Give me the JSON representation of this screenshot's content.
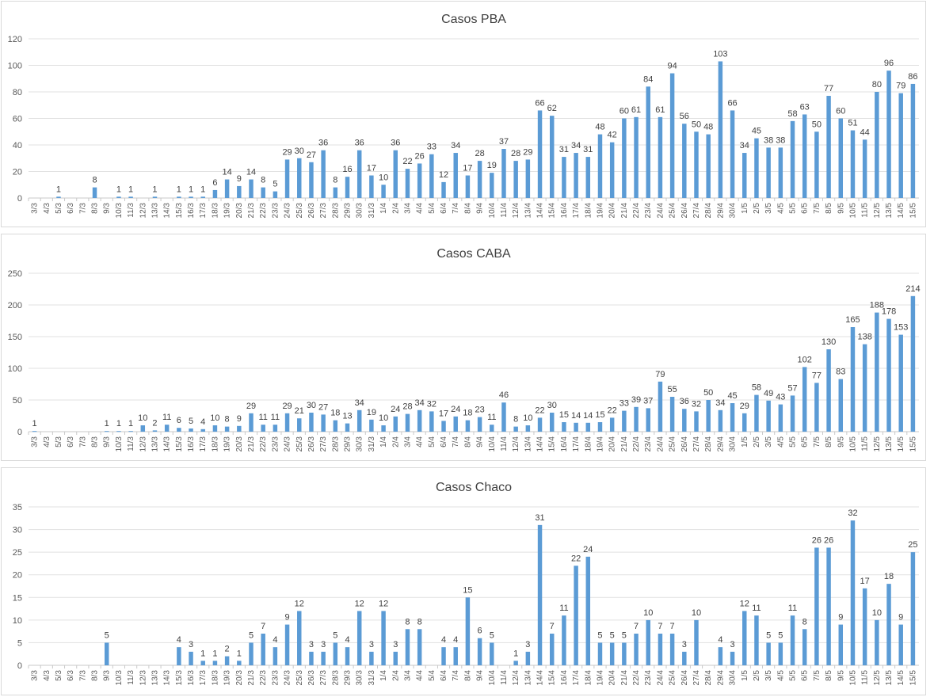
{
  "dates": [
    "3/3",
    "4/3",
    "5/3",
    "6/3",
    "7/3",
    "8/3",
    "9/3",
    "10/3",
    "11/3",
    "12/3",
    "13/3",
    "14/3",
    "15/3",
    "16/3",
    "17/3",
    "18/3",
    "19/3",
    "20/3",
    "21/3",
    "22/3",
    "23/3",
    "24/3",
    "25/3",
    "26/3",
    "27/3",
    "28/3",
    "29/3",
    "30/3",
    "31/3",
    "1/4",
    "2/4",
    "3/4",
    "4/4",
    "5/4",
    "6/4",
    "7/4",
    "8/4",
    "9/4",
    "10/4",
    "11/4",
    "12/4",
    "13/4",
    "14/4",
    "15/4",
    "16/4",
    "17/4",
    "18/4",
    "19/4",
    "20/4",
    "21/4",
    "22/4",
    "23/4",
    "24/4",
    "25/4",
    "26/4",
    "27/4",
    "28/4",
    "29/4",
    "30/4",
    "1/5",
    "2/5",
    "3/5",
    "4/5",
    "5/5",
    "6/5",
    "7/5",
    "8/5",
    "9/5",
    "10/5",
    "11/5",
    "12/5",
    "13/5",
    "14/5",
    "15/5"
  ],
  "colors": {
    "bar": "#5b9bd5",
    "grid": "#e1e1e1",
    "text": "#595959",
    "title": "#404040",
    "border": "#d9d9d9"
  },
  "chart_data": [
    {
      "type": "bar",
      "title": "Casos PBA",
      "xlabel": "",
      "ylabel": "",
      "ylim": [
        0,
        120
      ],
      "yticks": [
        0,
        20,
        40,
        60,
        80,
        100,
        120
      ],
      "grid": true,
      "values": [
        0,
        0,
        1,
        0,
        0,
        8,
        0,
        1,
        1,
        0,
        1,
        0,
        1,
        1,
        1,
        6,
        14,
        9,
        14,
        8,
        5,
        29,
        30,
        27,
        36,
        8,
        16,
        36,
        17,
        10,
        36,
        22,
        26,
        33,
        12,
        34,
        17,
        28,
        19,
        37,
        28,
        29,
        66,
        62,
        31,
        34,
        31,
        48,
        42,
        60,
        61,
        84,
        61,
        94,
        56,
        50,
        48,
        103,
        66,
        34,
        45,
        38,
        38,
        58,
        63,
        50,
        77,
        60,
        51,
        44,
        80,
        96,
        79,
        86
      ],
      "labels": [
        "",
        "",
        "1",
        "",
        "",
        "8",
        "",
        "1",
        "1",
        "",
        "1",
        "",
        "1",
        "1",
        "1",
        "6",
        "14",
        "9",
        "14",
        "8",
        "5",
        "29",
        "30",
        "27",
        "36",
        "8",
        "16",
        "36",
        "17",
        "10",
        "36",
        "22",
        "26",
        "33",
        "12",
        "34",
        "17",
        "28",
        "19",
        "37",
        "28",
        "29",
        "66",
        "62",
        "31",
        "34",
        "31",
        "48",
        "42",
        "60",
        "61",
        "84",
        "61",
        "94",
        "56",
        "50",
        "48",
        "103",
        "66",
        "34",
        "45",
        "38",
        "38",
        "58",
        "63",
        "50",
        "77",
        "60",
        "51",
        "44",
        "80",
        "96",
        "79",
        "86"
      ]
    },
    {
      "type": "bar",
      "title": "Casos CABA",
      "xlabel": "",
      "ylabel": "",
      "ylim": [
        0,
        250
      ],
      "yticks": [
        0,
        50,
        100,
        150,
        200,
        250
      ],
      "grid": true,
      "values": [
        1,
        0,
        0,
        0,
        0,
        0,
        1,
        1,
        1,
        10,
        2,
        11,
        6,
        5,
        4,
        10,
        8,
        9,
        29,
        11,
        11,
        29,
        21,
        30,
        27,
        18,
        13,
        34,
        19,
        10,
        24,
        28,
        34,
        32,
        17,
        24,
        18,
        23,
        11,
        46,
        8,
        10,
        22,
        30,
        15,
        14,
        14,
        15,
        22,
        33,
        39,
        37,
        79,
        55,
        36,
        32,
        50,
        34,
        45,
        29,
        58,
        49,
        43,
        57,
        102,
        77,
        130,
        83,
        165,
        138,
        188,
        178,
        153,
        214
      ],
      "labels": [
        "1",
        "",
        "",
        "",
        "",
        "",
        "1",
        "1",
        "1",
        "10",
        "2",
        "11",
        "6",
        "5",
        "4",
        "10",
        "8",
        "9",
        "29",
        "11",
        "11",
        "29",
        "21",
        "30",
        "27",
        "18",
        "13",
        "34",
        "19",
        "10",
        "24",
        "28",
        "34",
        "32",
        "17",
        "24",
        "18",
        "23",
        "11",
        "46",
        "8",
        "10",
        "22",
        "30",
        "15",
        "14",
        "14",
        "15",
        "22",
        "33",
        "39",
        "37",
        "79",
        "55",
        "36",
        "32",
        "50",
        "34",
        "45",
        "29",
        "58",
        "49",
        "43",
        "57",
        "102",
        "77",
        "130",
        "83",
        "165",
        "138",
        "188",
        "178",
        "153",
        "214"
      ]
    },
    {
      "type": "bar",
      "title": "Casos Chaco",
      "xlabel": "",
      "ylabel": "",
      "ylim": [
        0,
        35
      ],
      "yticks": [
        0,
        5,
        10,
        15,
        20,
        25,
        30,
        35
      ],
      "grid": true,
      "values": [
        0,
        0,
        0,
        0,
        0,
        0,
        5,
        0,
        0,
        0,
        0,
        0,
        4,
        3,
        1,
        1,
        2,
        1,
        5,
        7,
        4,
        9,
        12,
        3,
        3,
        5,
        4,
        12,
        3,
        12,
        3,
        8,
        8,
        0,
        4,
        4,
        15,
        6,
        5,
        0,
        1,
        3,
        31,
        7,
        11,
        22,
        24,
        5,
        5,
        5,
        7,
        10,
        7,
        7,
        3,
        10,
        0,
        4,
        3,
        12,
        11,
        5,
        5,
        11,
        8,
        26,
        26,
        9,
        32,
        17,
        10,
        18,
        9,
        25
      ],
      "labels": [
        "",
        "",
        "",
        "",
        "",
        "",
        "5",
        "",
        "",
        "",
        "",
        "",
        "4",
        "3",
        "1",
        "1",
        "2",
        "1",
        "5",
        "7",
        "4",
        "9",
        "12",
        "3",
        "3",
        "5",
        "4",
        "12",
        "3",
        "12",
        "3",
        "8",
        "8",
        "",
        "4",
        "4",
        "15",
        "6",
        "5",
        "",
        "1",
        "3",
        "31",
        "7",
        "11",
        "22",
        "24",
        "5",
        "5",
        "5",
        "7",
        "10",
        "7",
        "7",
        "3",
        "10",
        "",
        "4",
        "3",
        "12",
        "11",
        "5",
        "5",
        "11",
        "8",
        "26",
        "26",
        "9",
        "32",
        "17",
        "10",
        "18",
        "9",
        "25"
      ]
    }
  ]
}
